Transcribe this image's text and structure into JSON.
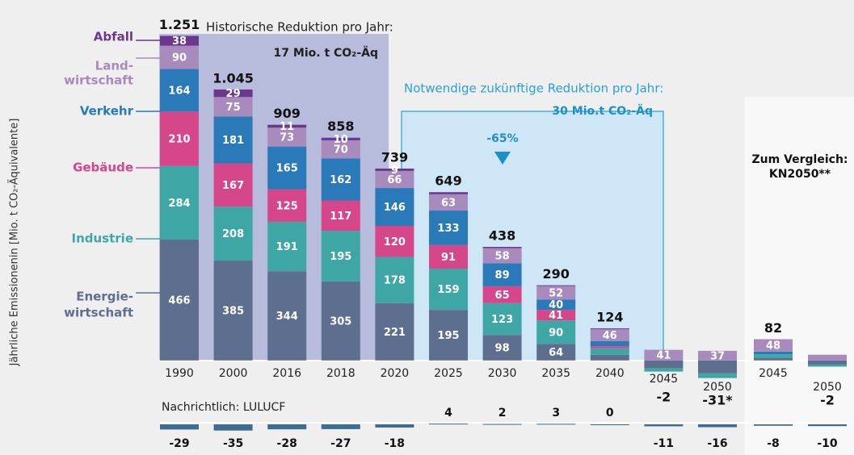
{
  "chart_data": {
    "type": "bar",
    "stacked": true,
    "y_label": "Jährliche Emissionenin [Mio. t CO₂-Äquivalente]",
    "categories": [
      "1990",
      "2000",
      "2016",
      "2018",
      "2020",
      "2025",
      "2030",
      "2035",
      "2040",
      "2045",
      "2050",
      "2045",
      "2050"
    ],
    "ylim": [
      -150,
      1300
    ],
    "series": [
      {
        "name": [
          "Energie-",
          "wirtschaft"
        ],
        "color": "#5d6e8e",
        "values": [
          466,
          385,
          344,
          305,
          221,
          195,
          98,
          64,
          22,
          -30,
          -50,
          10,
          -16
        ],
        "value_labels": [
          466,
          385,
          344,
          305,
          221,
          195,
          98,
          64,
          null,
          null,
          null,
          null,
          null
        ]
      },
      {
        "name": [
          "Industrie"
        ],
        "color": "#3ea7a6",
        "values": [
          284,
          208,
          191,
          195,
          178,
          159,
          123,
          90,
          25,
          -13,
          -18,
          14,
          -8
        ],
        "value_labels": [
          284,
          208,
          191,
          195,
          178,
          159,
          123,
          90,
          null,
          null,
          null,
          null,
          null
        ]
      },
      {
        "name": [
          "Gebäude"
        ],
        "color": "#d6468a",
        "values": [
          210,
          167,
          125,
          117,
          120,
          91,
          65,
          41,
          8,
          0,
          0,
          0,
          0
        ],
        "value_labels": [
          210,
          167,
          125,
          117,
          120,
          91,
          65,
          41,
          null,
          null,
          null,
          null,
          null
        ]
      },
      {
        "name": [
          "Verkehr"
        ],
        "color": "#2a79b8",
        "values": [
          164,
          181,
          165,
          162,
          146,
          133,
          89,
          40,
          20,
          0,
          0,
          10,
          0
        ],
        "value_labels": [
          164,
          181,
          165,
          162,
          146,
          133,
          89,
          40,
          null,
          null,
          null,
          null,
          null
        ]
      },
      {
        "name": [
          "Land-",
          "wirtschaft"
        ],
        "color": "#a98abd",
        "values": [
          90,
          75,
          73,
          70,
          66,
          63,
          58,
          52,
          46,
          41,
          37,
          48,
          22
        ],
        "value_labels": [
          90,
          75,
          73,
          70,
          66,
          63,
          58,
          52,
          46,
          41,
          37,
          48,
          null
        ]
      },
      {
        "name": [
          "Abfall"
        ],
        "color": "#6a378c",
        "values": [
          38,
          29,
          11,
          10,
          9,
          8,
          5,
          3,
          3,
          0,
          0,
          0,
          0
        ],
        "value_labels": [
          38,
          29,
          11,
          10,
          9,
          null,
          null,
          null,
          null,
          null,
          null,
          null,
          null
        ]
      }
    ],
    "totals": {
      "values": [
        1251,
        1045,
        909,
        858,
        739,
        649,
        438,
        290,
        124,
        -2,
        -31,
        82,
        -2
      ],
      "value_labels": [
        "1.251",
        "1.045",
        "909",
        "858",
        "739",
        "649",
        "438",
        "290",
        "124",
        "-2",
        "-31*",
        "82",
        "-2"
      ]
    },
    "lulucf": {
      "title": "Nachrichtlich: LULUCF",
      "values": [
        -29,
        -35,
        -28,
        -27,
        -18,
        4,
        2,
        3,
        0,
        -11,
        -16,
        -8,
        -10
      ]
    },
    "annotations": {
      "historic_title": "Historische Reduktion pro Jahr:",
      "historic_value": "17 Mio. t CO₂-Äq",
      "future_title": "Notwendige zukünftige Reduktion pro Jahr:",
      "future_value": "30 Mio.t CO₂-Äq",
      "reduction": "-65%",
      "comparison": [
        "Zum Vergleich:",
        "KN2050**"
      ]
    }
  }
}
